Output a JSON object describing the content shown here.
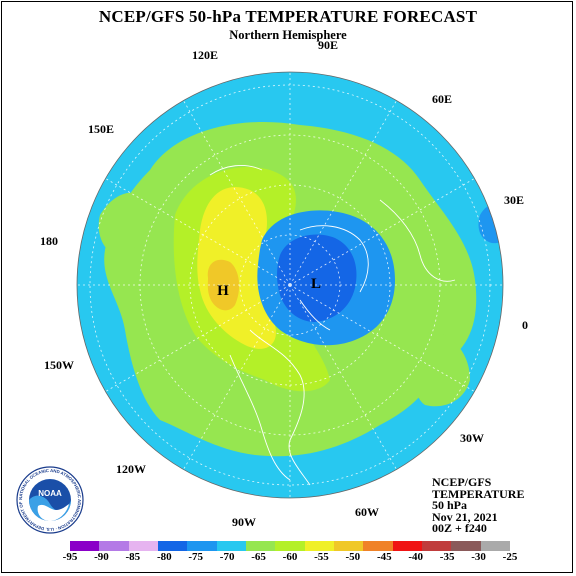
{
  "title": "NCEP/GFS 50-hPa TEMPERATURE FORECAST",
  "subtitle": "Northern Hemisphere",
  "longitude_labels": [
    "90E",
    "60E",
    "30E",
    "0",
    "30W",
    "60W",
    "90W",
    "120W",
    "150W",
    "180",
    "150E",
    "120E"
  ],
  "centers": {
    "high": "H",
    "low": "L"
  },
  "info": {
    "line1": "NCEP/GFS",
    "line2": "TEMPERATURE",
    "line3": "50 hPa",
    "line4": "Nov 21, 2021",
    "line5": "00Z + f240"
  },
  "logo": {
    "center_text": "NOAA",
    "ring_text": "NATIONAL OCEANIC AND ATMOSPHERIC ADMINISTRATION · U.S. DEPARTMENT OF COMMERCE ·"
  },
  "colorbar": {
    "colors": [
      "#8a00c8",
      "#b47ae6",
      "#e6b4f0",
      "#1466e6",
      "#1e96f0",
      "#28c8f0",
      "#96e650",
      "#b4f028",
      "#f0f028",
      "#f0c828",
      "#f08228",
      "#f01414",
      "#c03c3c",
      "#8a5a5a",
      "#aaaaaa"
    ],
    "ticks": [
      "-95",
      "-90",
      "-85",
      "-80",
      "-75",
      "-70",
      "-65",
      "-60",
      "-55",
      "-50",
      "-45",
      "-40",
      "-35",
      "-30",
      "-25"
    ]
  },
  "palette": {
    "ocean_blue": "#28c8f0",
    "green": "#96e650",
    "lime": "#b4f028",
    "yellow": "#f0f028",
    "orange": "#f0c828",
    "blue": "#1e96f0",
    "dark_blue": "#1466e6"
  }
}
